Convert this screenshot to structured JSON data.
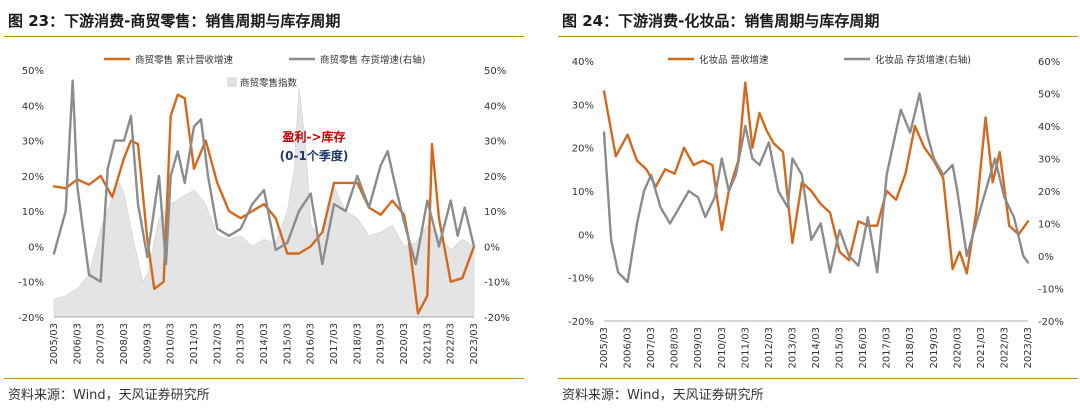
{
  "colors": {
    "orange": "#d2691e",
    "gray": "#8c8c8c",
    "index_fill": "#e4e4e4",
    "rule": "#c9852c",
    "red": "#c00000",
    "navy": "#1f3864"
  },
  "left": {
    "title": "图 23：下游消费-商贸零售：销售周期与库存周期",
    "source": "资料来源：Wind，天风证券研究所",
    "chart_data": {
      "type": "line",
      "x_labels": [
        "2005/03",
        "2006/03",
        "2007/03",
        "2008/03",
        "2009/03",
        "2010/03",
        "2011/03",
        "2012/03",
        "2013/03",
        "2014/03",
        "2015/03",
        "2016/03",
        "2017/03",
        "2018/03",
        "2019/03",
        "2020/03",
        "2021/03",
        "2022/03",
        "2023/03"
      ],
      "y_left_ticks": [
        "50%",
        "40%",
        "30%",
        "20%",
        "10%",
        "0%",
        "-10%",
        "-20%"
      ],
      "y_right_ticks": [
        "50%",
        "40%",
        "30%",
        "20%",
        "10%",
        "0%",
        "-10%",
        "-20%"
      ],
      "ylim_left": [
        -20,
        50
      ],
      "ylim_right": [
        -20,
        50
      ],
      "annotation_1": "盈利->库存",
      "annotation_2": "(0-1个季度)",
      "series": [
        {
          "name": "商贸零售  累计营收增速",
          "axis": "left",
          "color": "#d2691e",
          "x": [
            2005.0,
            2005.5,
            2006.0,
            2006.5,
            2007.0,
            2007.5,
            2008.0,
            2008.3,
            2008.6,
            2009.0,
            2009.3,
            2009.7,
            2010.0,
            2010.3,
            2010.6,
            2011.0,
            2011.5,
            2012.0,
            2012.5,
            2013.0,
            2013.5,
            2014.0,
            2014.5,
            2015.0,
            2015.5,
            2016.0,
            2016.5,
            2017.0,
            2017.5,
            2018.0,
            2018.5,
            2019.0,
            2019.5,
            2020.0,
            2020.2,
            2020.6,
            2021.0,
            2021.2,
            2021.5,
            2022.0,
            2022.5,
            2023.0
          ],
          "y": [
            17,
            16.5,
            19,
            17.5,
            20,
            14,
            25,
            30,
            29,
            2,
            -12,
            -10,
            37,
            43,
            42,
            22,
            30,
            18,
            10,
            8,
            10,
            12,
            8,
            -2,
            -2,
            0,
            4,
            18,
            18,
            18,
            11,
            9,
            13,
            9,
            2,
            -19,
            -14,
            29,
            8,
            -10,
            -9,
            0
          ]
        },
        {
          "name": "商贸零售  存货增速(右轴)",
          "axis": "right",
          "color": "#8c8c8c",
          "x": [
            2005.0,
            2005.5,
            2005.8,
            2006.0,
            2006.5,
            2007.0,
            2007.3,
            2007.6,
            2008.0,
            2008.3,
            2008.6,
            2009.0,
            2009.5,
            2009.8,
            2010.0,
            2010.3,
            2010.6,
            2011.0,
            2011.3,
            2011.6,
            2012.0,
            2012.5,
            2013.0,
            2013.5,
            2014.0,
            2014.5,
            2015.0,
            2015.5,
            2016.0,
            2016.5,
            2017.0,
            2017.5,
            2018.0,
            2018.5,
            2019.0,
            2019.3,
            2019.6,
            2020.0,
            2020.5,
            2021.0,
            2021.5,
            2022.0,
            2022.3,
            2022.6,
            2023.0
          ],
          "y": [
            -2,
            10,
            47,
            17,
            -8,
            -10,
            22,
            30,
            30,
            37,
            12,
            -3,
            20,
            -5,
            20,
            27,
            18,
            34,
            36,
            20,
            5,
            3,
            5,
            12,
            16,
            -1,
            1,
            10,
            15,
            -5,
            12,
            10,
            20,
            11,
            23,
            27,
            18,
            7,
            -5,
            13,
            0,
            13,
            3,
            11,
            0
          ]
        },
        {
          "name": "商贸零售指数",
          "axis": "left",
          "type": "area",
          "color": "#e4e4e4",
          "x": [
            2005.0,
            2005.5,
            2006.0,
            2006.5,
            2007.0,
            2007.4,
            2007.8,
            2008.0,
            2008.4,
            2008.8,
            2009.0,
            2009.5,
            2010.0,
            2010.5,
            2011.0,
            2011.5,
            2012.0,
            2012.5,
            2013.0,
            2013.5,
            2014.0,
            2014.5,
            2015.0,
            2015.3,
            2015.5,
            2015.8,
            2016.0,
            2016.5,
            2017.0,
            2017.5,
            2018.0,
            2018.5,
            2019.0,
            2019.5,
            2020.0,
            2020.5,
            2021.0,
            2021.5,
            2022.0,
            2022.5,
            2023.0
          ],
          "y": [
            -15,
            -14,
            -12,
            -8,
            5,
            12,
            18,
            15,
            2,
            -10,
            -8,
            8,
            12,
            14,
            16,
            12,
            3,
            2,
            3,
            0,
            2,
            1,
            10,
            22,
            45,
            28,
            6,
            2,
            17,
            10,
            8,
            3,
            4,
            6,
            0,
            1,
            6,
            3,
            -1,
            2,
            0
          ]
        }
      ]
    }
  },
  "right": {
    "title": "图 24：下游消费-化妆品：销售周期与库存周期",
    "source": "资料来源：Wind，天风证券研究所",
    "chart_data": {
      "type": "line",
      "x_labels": [
        "2005/03",
        "2006/03",
        "2007/03",
        "2008/03",
        "2009/03",
        "2010/03",
        "2011/03",
        "2012/03",
        "2013/03",
        "2014/03",
        "2015/03",
        "2016/03",
        "2017/03",
        "2018/03",
        "2019/03",
        "2020/03",
        "2021/03",
        "2022/03",
        "2023/03"
      ],
      "y_left_ticks": [
        "40%",
        "30%",
        "20%",
        "10%",
        "0%",
        "-10%",
        "-20%"
      ],
      "y_right_ticks": [
        "60%",
        "50%",
        "40%",
        "30%",
        "20%",
        "10%",
        "0%",
        "-10%",
        "-20%"
      ],
      "ylim_left": [
        -20,
        40
      ],
      "ylim_right": [
        -20,
        60
      ],
      "series": [
        {
          "name": "化妆品  营收增速",
          "axis": "left",
          "color": "#d2691e",
          "x": [
            2005.0,
            2005.5,
            2006.0,
            2006.4,
            2006.8,
            2007.2,
            2007.6,
            2008.0,
            2008.4,
            2008.8,
            2009.2,
            2009.6,
            2010.0,
            2010.3,
            2010.7,
            2011.0,
            2011.3,
            2011.6,
            2011.9,
            2012.2,
            2012.6,
            2013.0,
            2013.4,
            2013.8,
            2014.2,
            2014.6,
            2015.0,
            2015.4,
            2015.8,
            2016.2,
            2016.6,
            2017.0,
            2017.4,
            2017.8,
            2018.2,
            2018.6,
            2019.0,
            2019.4,
            2019.8,
            2020.1,
            2020.4,
            2020.8,
            2021.2,
            2021.5,
            2021.8,
            2022.2,
            2022.6,
            2023.0
          ],
          "y": [
            33,
            18,
            23,
            17,
            15,
            11,
            15,
            14,
            20,
            16,
            17,
            16,
            1,
            10,
            17,
            35,
            20,
            28,
            24,
            21,
            19,
            -2,
            12,
            10,
            7,
            5,
            -4,
            -6,
            3,
            2,
            2,
            10,
            8,
            14,
            25,
            20,
            17,
            13,
            -8,
            -4,
            -9,
            5,
            27,
            12,
            19,
            2,
            0,
            3
          ]
        },
        {
          "name": "化妆品  存货增速(右轴)",
          "axis": "right",
          "color": "#8c8c8c",
          "x": [
            2005.0,
            2005.3,
            2005.6,
            2006.0,
            2006.4,
            2006.7,
            2007.0,
            2007.4,
            2007.8,
            2008.2,
            2008.6,
            2009.0,
            2009.3,
            2009.7,
            2010.0,
            2010.3,
            2010.6,
            2011.0,
            2011.3,
            2011.6,
            2012.0,
            2012.4,
            2012.8,
            2013.0,
            2013.4,
            2013.8,
            2014.2,
            2014.6,
            2015.0,
            2015.4,
            2015.8,
            2016.2,
            2016.6,
            2017.0,
            2017.3,
            2017.6,
            2018.0,
            2018.4,
            2018.7,
            2019.0,
            2019.4,
            2019.8,
            2020.0,
            2020.4,
            2020.8,
            2021.2,
            2021.6,
            2022.0,
            2022.4,
            2022.8,
            2023.0
          ],
          "y": [
            38,
            5,
            -5,
            -8,
            10,
            20,
            25,
            15,
            10,
            15,
            20,
            18,
            12,
            18,
            30,
            20,
            25,
            40,
            30,
            28,
            35,
            20,
            15,
            30,
            25,
            5,
            10,
            -5,
            8,
            0,
            -3,
            12,
            -5,
            25,
            35,
            45,
            38,
            50,
            38,
            30,
            25,
            28,
            20,
            0,
            10,
            20,
            30,
            18,
            12,
            0,
            -2
          ]
        }
      ]
    }
  }
}
